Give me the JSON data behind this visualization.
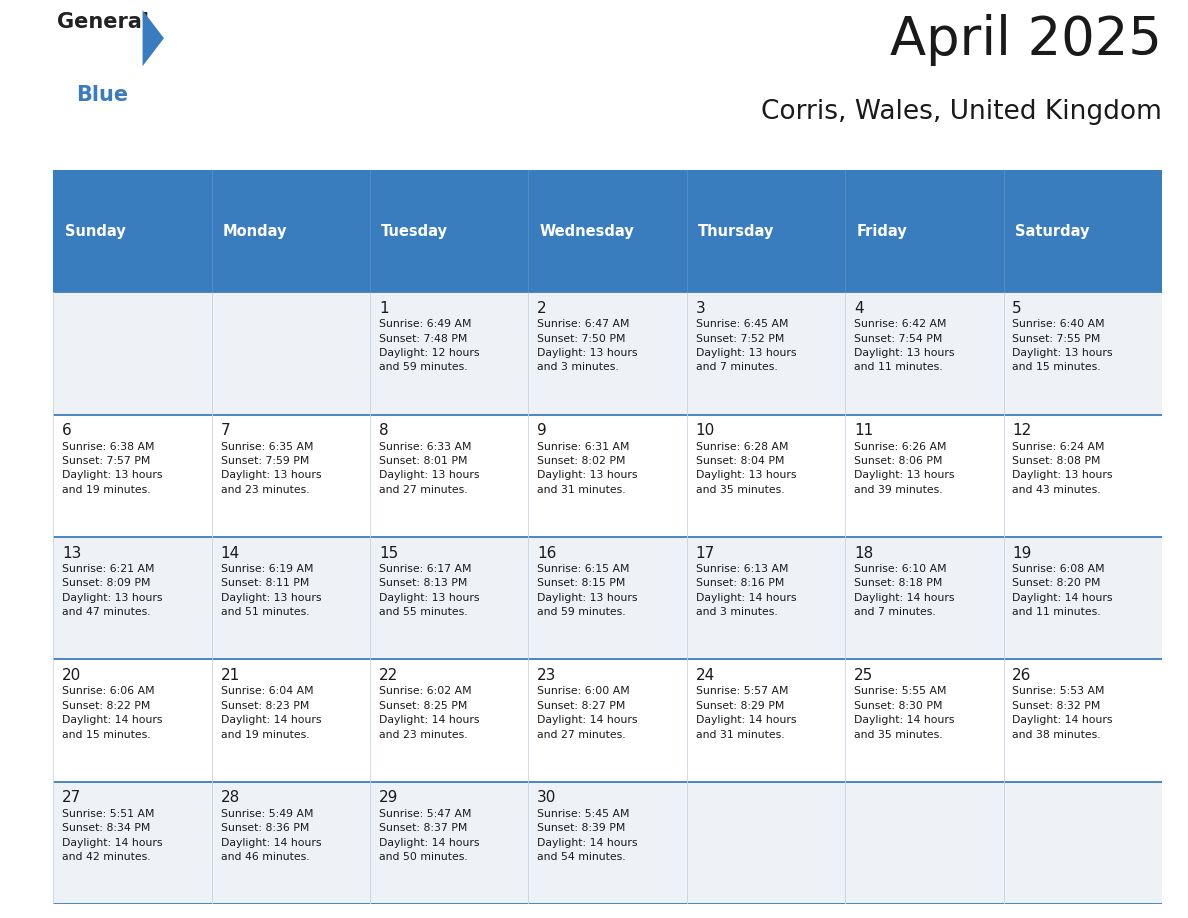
{
  "title": "April 2025",
  "subtitle": "Corris, Wales, United Kingdom",
  "header_bg": "#3a7dbf",
  "header_text": "#ffffff",
  "border_color": "#3a7dbf",
  "row_bg_odd": "#eef2f7",
  "row_bg_even": "#ffffff",
  "text_color": "#1a1a1a",
  "day_headers": [
    "Sunday",
    "Monday",
    "Tuesday",
    "Wednesday",
    "Thursday",
    "Friday",
    "Saturday"
  ],
  "days": [
    {
      "day": null,
      "col": 0,
      "row": 0,
      "text": ""
    },
    {
      "day": null,
      "col": 1,
      "row": 0,
      "text": ""
    },
    {
      "day": 1,
      "col": 2,
      "row": 0,
      "text": "Sunrise: 6:49 AM\nSunset: 7:48 PM\nDaylight: 12 hours\nand 59 minutes."
    },
    {
      "day": 2,
      "col": 3,
      "row": 0,
      "text": "Sunrise: 6:47 AM\nSunset: 7:50 PM\nDaylight: 13 hours\nand 3 minutes."
    },
    {
      "day": 3,
      "col": 4,
      "row": 0,
      "text": "Sunrise: 6:45 AM\nSunset: 7:52 PM\nDaylight: 13 hours\nand 7 minutes."
    },
    {
      "day": 4,
      "col": 5,
      "row": 0,
      "text": "Sunrise: 6:42 AM\nSunset: 7:54 PM\nDaylight: 13 hours\nand 11 minutes."
    },
    {
      "day": 5,
      "col": 6,
      "row": 0,
      "text": "Sunrise: 6:40 AM\nSunset: 7:55 PM\nDaylight: 13 hours\nand 15 minutes."
    },
    {
      "day": 6,
      "col": 0,
      "row": 1,
      "text": "Sunrise: 6:38 AM\nSunset: 7:57 PM\nDaylight: 13 hours\nand 19 minutes."
    },
    {
      "day": 7,
      "col": 1,
      "row": 1,
      "text": "Sunrise: 6:35 AM\nSunset: 7:59 PM\nDaylight: 13 hours\nand 23 minutes."
    },
    {
      "day": 8,
      "col": 2,
      "row": 1,
      "text": "Sunrise: 6:33 AM\nSunset: 8:01 PM\nDaylight: 13 hours\nand 27 minutes."
    },
    {
      "day": 9,
      "col": 3,
      "row": 1,
      "text": "Sunrise: 6:31 AM\nSunset: 8:02 PM\nDaylight: 13 hours\nand 31 minutes."
    },
    {
      "day": 10,
      "col": 4,
      "row": 1,
      "text": "Sunrise: 6:28 AM\nSunset: 8:04 PM\nDaylight: 13 hours\nand 35 minutes."
    },
    {
      "day": 11,
      "col": 5,
      "row": 1,
      "text": "Sunrise: 6:26 AM\nSunset: 8:06 PM\nDaylight: 13 hours\nand 39 minutes."
    },
    {
      "day": 12,
      "col": 6,
      "row": 1,
      "text": "Sunrise: 6:24 AM\nSunset: 8:08 PM\nDaylight: 13 hours\nand 43 minutes."
    },
    {
      "day": 13,
      "col": 0,
      "row": 2,
      "text": "Sunrise: 6:21 AM\nSunset: 8:09 PM\nDaylight: 13 hours\nand 47 minutes."
    },
    {
      "day": 14,
      "col": 1,
      "row": 2,
      "text": "Sunrise: 6:19 AM\nSunset: 8:11 PM\nDaylight: 13 hours\nand 51 minutes."
    },
    {
      "day": 15,
      "col": 2,
      "row": 2,
      "text": "Sunrise: 6:17 AM\nSunset: 8:13 PM\nDaylight: 13 hours\nand 55 minutes."
    },
    {
      "day": 16,
      "col": 3,
      "row": 2,
      "text": "Sunrise: 6:15 AM\nSunset: 8:15 PM\nDaylight: 13 hours\nand 59 minutes."
    },
    {
      "day": 17,
      "col": 4,
      "row": 2,
      "text": "Sunrise: 6:13 AM\nSunset: 8:16 PM\nDaylight: 14 hours\nand 3 minutes."
    },
    {
      "day": 18,
      "col": 5,
      "row": 2,
      "text": "Sunrise: 6:10 AM\nSunset: 8:18 PM\nDaylight: 14 hours\nand 7 minutes."
    },
    {
      "day": 19,
      "col": 6,
      "row": 2,
      "text": "Sunrise: 6:08 AM\nSunset: 8:20 PM\nDaylight: 14 hours\nand 11 minutes."
    },
    {
      "day": 20,
      "col": 0,
      "row": 3,
      "text": "Sunrise: 6:06 AM\nSunset: 8:22 PM\nDaylight: 14 hours\nand 15 minutes."
    },
    {
      "day": 21,
      "col": 1,
      "row": 3,
      "text": "Sunrise: 6:04 AM\nSunset: 8:23 PM\nDaylight: 14 hours\nand 19 minutes."
    },
    {
      "day": 22,
      "col": 2,
      "row": 3,
      "text": "Sunrise: 6:02 AM\nSunset: 8:25 PM\nDaylight: 14 hours\nand 23 minutes."
    },
    {
      "day": 23,
      "col": 3,
      "row": 3,
      "text": "Sunrise: 6:00 AM\nSunset: 8:27 PM\nDaylight: 14 hours\nand 27 minutes."
    },
    {
      "day": 24,
      "col": 4,
      "row": 3,
      "text": "Sunrise: 5:57 AM\nSunset: 8:29 PM\nDaylight: 14 hours\nand 31 minutes."
    },
    {
      "day": 25,
      "col": 5,
      "row": 3,
      "text": "Sunrise: 5:55 AM\nSunset: 8:30 PM\nDaylight: 14 hours\nand 35 minutes."
    },
    {
      "day": 26,
      "col": 6,
      "row": 3,
      "text": "Sunrise: 5:53 AM\nSunset: 8:32 PM\nDaylight: 14 hours\nand 38 minutes."
    },
    {
      "day": 27,
      "col": 0,
      "row": 4,
      "text": "Sunrise: 5:51 AM\nSunset: 8:34 PM\nDaylight: 14 hours\nand 42 minutes."
    },
    {
      "day": 28,
      "col": 1,
      "row": 4,
      "text": "Sunrise: 5:49 AM\nSunset: 8:36 PM\nDaylight: 14 hours\nand 46 minutes."
    },
    {
      "day": 29,
      "col": 2,
      "row": 4,
      "text": "Sunrise: 5:47 AM\nSunset: 8:37 PM\nDaylight: 14 hours\nand 50 minutes."
    },
    {
      "day": 30,
      "col": 3,
      "row": 4,
      "text": "Sunrise: 5:45 AM\nSunset: 8:39 PM\nDaylight: 14 hours\nand 54 minutes."
    },
    {
      "day": null,
      "col": 4,
      "row": 4,
      "text": ""
    },
    {
      "day": null,
      "col": 5,
      "row": 4,
      "text": ""
    },
    {
      "day": null,
      "col": 6,
      "row": 4,
      "text": ""
    }
  ]
}
